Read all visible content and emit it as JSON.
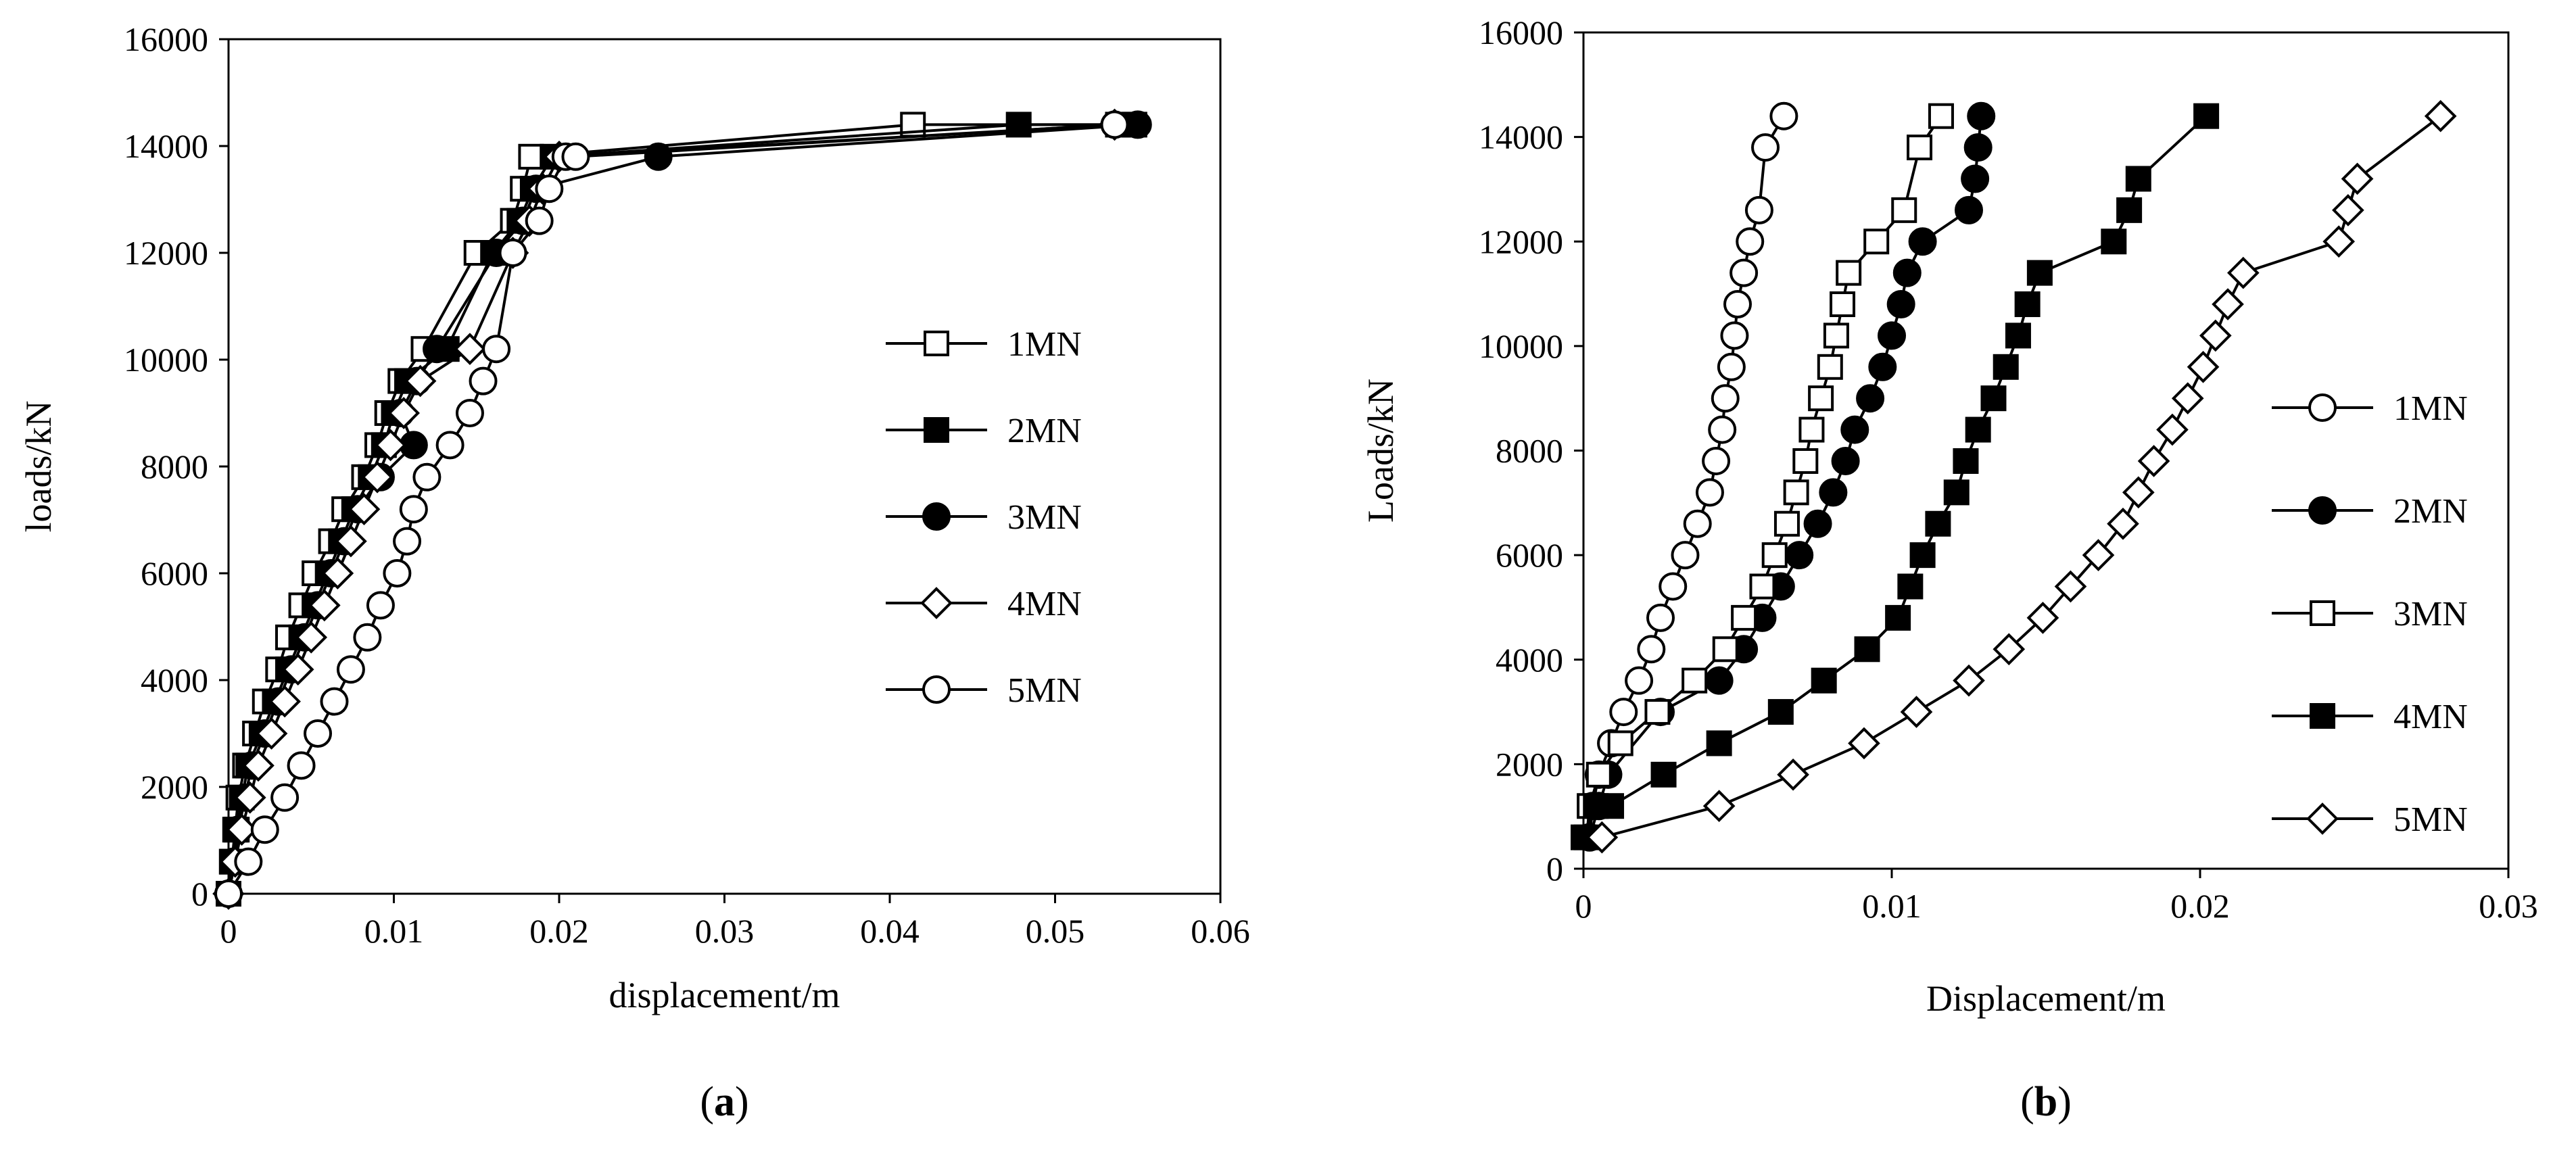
{
  "chart_data": [
    {
      "panel_label": "a",
      "type": "line",
      "title": "",
      "xlabel": "displacement/m",
      "ylabel": "loads/kN",
      "xlim": [
        0,
        0.06
      ],
      "ylim": [
        0,
        16000
      ],
      "xticks": [
        0,
        0.01,
        0.02,
        0.03,
        0.04,
        0.05,
        0.06
      ],
      "xtick_labels": [
        "0",
        "0.01",
        "0.02",
        "0.03",
        "0.04",
        "0.05",
        "0.06"
      ],
      "yticks": [
        0,
        2000,
        4000,
        6000,
        8000,
        10000,
        12000,
        14000,
        16000
      ],
      "ytick_labels": [
        "0",
        "2000",
        "4000",
        "6000",
        "8000",
        "10000",
        "12000",
        "14000",
        "16000"
      ],
      "grid": false,
      "legend_position": "right",
      "series": [
        {
          "name": "1MN",
          "marker": "square-open",
          "x": [
            0,
            0.0002,
            0.0004,
            0.0006,
            0.001,
            0.0016,
            0.0022,
            0.003,
            0.0036,
            0.0044,
            0.0052,
            0.0062,
            0.007,
            0.0082,
            0.009,
            0.0096,
            0.0104,
            0.0118,
            0.015,
            0.0172,
            0.0178,
            0.0183,
            0.0414,
            0.0538
          ],
          "y": [
            0,
            600,
            1200,
            1800,
            2400,
            3000,
            3600,
            4200,
            4800,
            5400,
            6000,
            6600,
            7200,
            7800,
            8400,
            9000,
            9600,
            10200,
            12000,
            12600,
            13200,
            13800,
            14400,
            14400
          ]
        },
        {
          "name": "2MN",
          "marker": "square-filled",
          "x": [
            0,
            0.0002,
            0.0005,
            0.0008,
            0.0012,
            0.002,
            0.0028,
            0.0036,
            0.0044,
            0.0052,
            0.006,
            0.0068,
            0.0076,
            0.0086,
            0.0094,
            0.01,
            0.0108,
            0.0132,
            0.016,
            0.0176,
            0.0184,
            0.0196,
            0.0478,
            0.0548
          ],
          "y": [
            0,
            600,
            1200,
            1800,
            2400,
            3000,
            3600,
            4200,
            4800,
            5400,
            6000,
            6600,
            7200,
            7800,
            8400,
            9000,
            9600,
            10200,
            12000,
            12600,
            13200,
            13800,
            14400,
            14400
          ]
        },
        {
          "name": "3MN",
          "marker": "circle-filled",
          "x": [
            0,
            0.0003,
            0.0006,
            0.001,
            0.0014,
            0.0022,
            0.003,
            0.0038,
            0.0046,
            0.0054,
            0.0062,
            0.007,
            0.0078,
            0.0092,
            0.0112,
            0.0104,
            0.0114,
            0.0126,
            0.0162,
            0.0178,
            0.0186,
            0.026,
            0.055
          ],
          "y": [
            0,
            600,
            1200,
            1800,
            2400,
            3000,
            3600,
            4200,
            4800,
            5400,
            6000,
            6600,
            7200,
            7800,
            8400,
            9000,
            9600,
            10200,
            12000,
            12600,
            13200,
            13800,
            14400
          ]
        },
        {
          "name": "4MN",
          "marker": "diamond-open",
          "x": [
            0,
            0.0004,
            0.0008,
            0.0013,
            0.0018,
            0.0026,
            0.0034,
            0.0042,
            0.005,
            0.0058,
            0.0066,
            0.0074,
            0.0082,
            0.009,
            0.0098,
            0.0106,
            0.0116,
            0.0146,
            0.0172,
            0.0182,
            0.019,
            0.02,
            0.0536
          ],
          "y": [
            0,
            600,
            1200,
            1800,
            2400,
            3000,
            3600,
            4200,
            4800,
            5400,
            6000,
            6600,
            7200,
            7800,
            8400,
            9000,
            9600,
            10200,
            12000,
            12600,
            13200,
            13800,
            14400
          ]
        },
        {
          "name": "5MN",
          "marker": "circle-open",
          "x": [
            0,
            0.0012,
            0.0022,
            0.0034,
            0.0044,
            0.0054,
            0.0064,
            0.0074,
            0.0084,
            0.0092,
            0.0102,
            0.0108,
            0.0112,
            0.012,
            0.0134,
            0.0146,
            0.0154,
            0.0162,
            0.0172,
            0.0188,
            0.0194,
            0.0204,
            0.021,
            0.0536
          ],
          "y": [
            0,
            600,
            1200,
            1800,
            2400,
            3000,
            3600,
            4200,
            4800,
            5400,
            6000,
            6600,
            7200,
            7800,
            8400,
            9000,
            9600,
            10200,
            12000,
            12600,
            13200,
            13800,
            13800,
            14400
          ]
        }
      ]
    },
    {
      "panel_label": "b",
      "type": "line",
      "title": "",
      "xlabel": "Displacement/m",
      "ylabel": "Loads/kN",
      "xlim": [
        0,
        0.03
      ],
      "ylim": [
        0,
        16000
      ],
      "xticks": [
        0,
        0.01,
        0.02,
        0.03
      ],
      "xtick_labels": [
        "0",
        "0.01",
        "0.02",
        "0.03"
      ],
      "yticks": [
        0,
        2000,
        4000,
        6000,
        8000,
        10000,
        12000,
        14000,
        16000
      ],
      "ytick_labels": [
        "0",
        "2000",
        "4000",
        "6000",
        "8000",
        "10000",
        "12000",
        "14000",
        "16000"
      ],
      "grid": false,
      "legend_position": "right",
      "series": [
        {
          "name": "1MN",
          "marker": "circle-open",
          "x": [
            0.0002,
            0.0003,
            0.0005,
            0.0009,
            0.0013,
            0.0018,
            0.0022,
            0.0025,
            0.0029,
            0.0033,
            0.0037,
            0.0041,
            0.0043,
            0.0045,
            0.0046,
            0.0048,
            0.0049,
            0.005,
            0.0052,
            0.0054,
            0.0057,
            0.0059,
            0.0065
          ],
          "y": [
            600,
            1200,
            1800,
            2400,
            3000,
            3600,
            4200,
            4800,
            5400,
            6000,
            6600,
            7200,
            7800,
            8400,
            9000,
            9600,
            10200,
            10800,
            11400,
            12000,
            12600,
            13800,
            14400
          ]
        },
        {
          "name": "2MN",
          "marker": "circle-filled",
          "x": [
            0.0002,
            0.0005,
            0.0008,
            0.0025,
            0.0044,
            0.0052,
            0.0058,
            0.0064,
            0.007,
            0.0076,
            0.0081,
            0.0085,
            0.0088,
            0.0093,
            0.0097,
            0.01,
            0.0103,
            0.0105,
            0.011,
            0.0125,
            0.0127,
            0.0128,
            0.0129
          ],
          "y": [
            600,
            1200,
            1800,
            3000,
            3600,
            4200,
            4800,
            5400,
            6000,
            6600,
            7200,
            7800,
            8400,
            9000,
            9600,
            10200,
            10800,
            11400,
            12000,
            12600,
            13200,
            13800,
            14400
          ]
        },
        {
          "name": "3MN",
          "marker": "square-open",
          "x": [
            0.0001,
            0.0002,
            0.0005,
            0.0012,
            0.0024,
            0.0036,
            0.0046,
            0.0052,
            0.0058,
            0.0062,
            0.0066,
            0.0069,
            0.0072,
            0.0074,
            0.0077,
            0.008,
            0.0082,
            0.0084,
            0.0086,
            0.0095,
            0.0104,
            0.0109,
            0.0116
          ],
          "y": [
            600,
            1200,
            1800,
            2400,
            3000,
            3600,
            4200,
            4800,
            5400,
            6000,
            6600,
            7200,
            7800,
            8400,
            9000,
            9600,
            10200,
            10800,
            11400,
            12000,
            12600,
            13800,
            14400
          ]
        },
        {
          "name": "4MN",
          "marker": "square-filled",
          "x": [
            0,
            0.0004,
            0.0009,
            0.0026,
            0.0044,
            0.0064,
            0.0078,
            0.0092,
            0.0102,
            0.0106,
            0.011,
            0.0115,
            0.0121,
            0.0124,
            0.0128,
            0.0133,
            0.0137,
            0.0141,
            0.0144,
            0.0148,
            0.0172,
            0.0177,
            0.018,
            0.0202
          ],
          "y": [
            600,
            1200,
            1200,
            1800,
            2400,
            3000,
            3600,
            4200,
            4800,
            5400,
            6000,
            6600,
            7200,
            7800,
            8400,
            9000,
            9600,
            10200,
            10800,
            11400,
            12000,
            12600,
            13200,
            14400
          ]
        },
        {
          "name": "5MN",
          "marker": "diamond-open",
          "x": [
            0.0006,
            0.0044,
            0.0068,
            0.0091,
            0.0108,
            0.0125,
            0.0138,
            0.0149,
            0.0158,
            0.0167,
            0.0175,
            0.018,
            0.0185,
            0.0191,
            0.0196,
            0.0201,
            0.0205,
            0.0209,
            0.0214,
            0.0245,
            0.0248,
            0.0251,
            0.0278
          ],
          "y": [
            600,
            1200,
            1800,
            2400,
            3000,
            3600,
            4200,
            4800,
            5400,
            6000,
            6600,
            7200,
            7800,
            8400,
            9000,
            9600,
            10200,
            10800,
            11400,
            12000,
            12600,
            13200,
            14400
          ]
        }
      ]
    }
  ]
}
